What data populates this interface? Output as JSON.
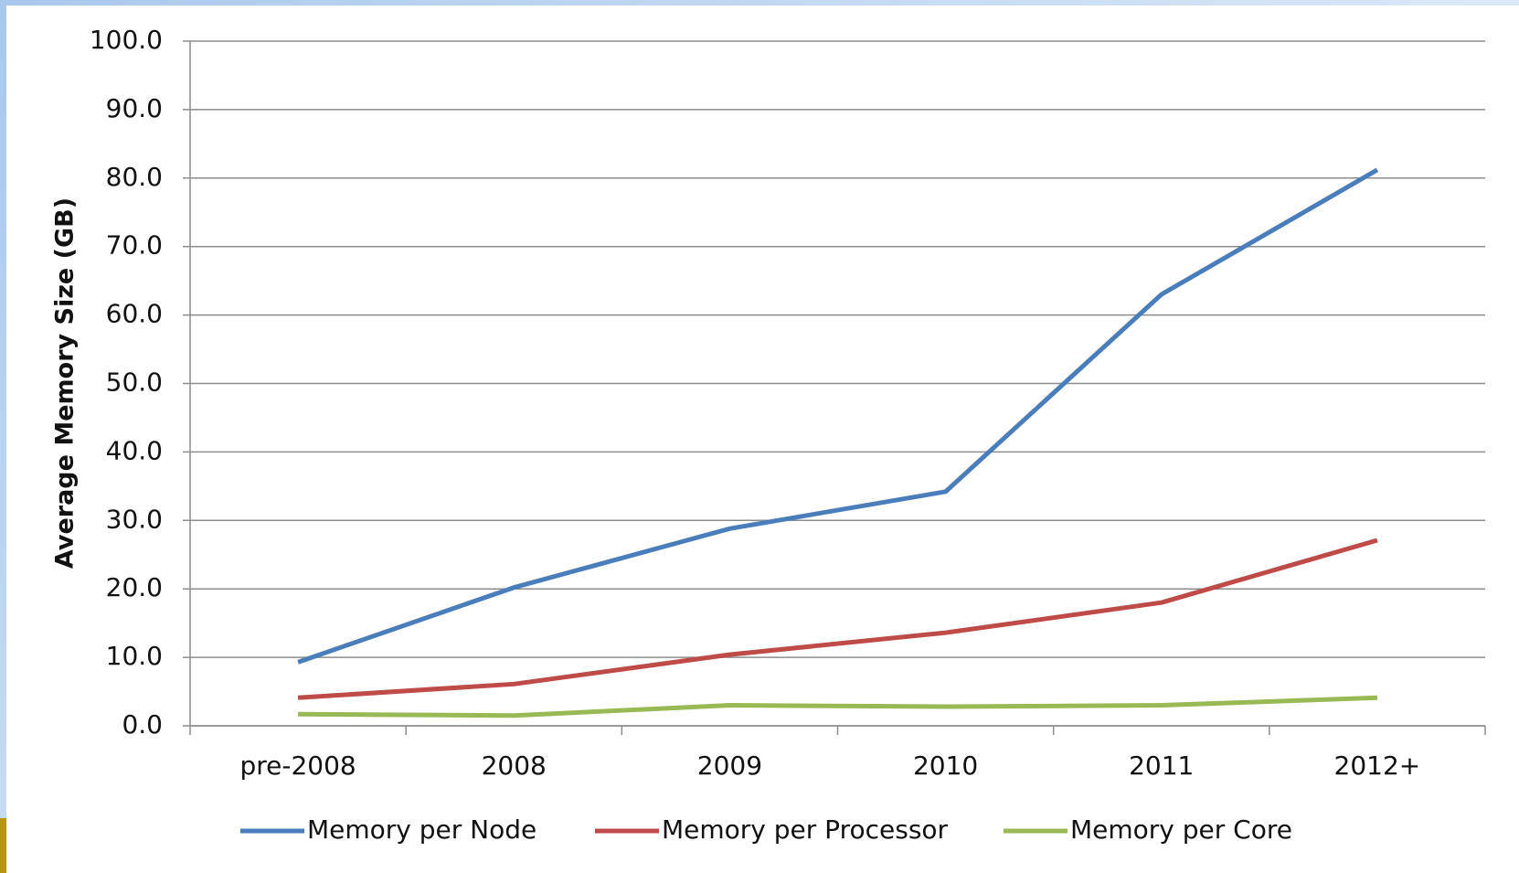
{
  "chart_data": {
    "type": "line",
    "ylabel": "Average Memory Size (GB)",
    "categories": [
      "pre-2008",
      "2008",
      "2009",
      "2010",
      "2011",
      "2012+"
    ],
    "series": [
      {
        "name": "Memory per Node",
        "color": "#4a7ebb",
        "values": [
          9.3,
          20.2,
          28.8,
          34.2,
          63.0,
          81.2
        ]
      },
      {
        "name": "Memory per Processor",
        "color": "#be4b48",
        "values": [
          4.1,
          6.1,
          10.4,
          13.6,
          18.0,
          27.1
        ]
      },
      {
        "name": "Memory per Core",
        "color": "#98b954",
        "values": [
          1.7,
          1.5,
          3.0,
          2.8,
          3.0,
          4.1
        ]
      }
    ],
    "ylim": [
      0,
      100
    ],
    "yticks": [
      {
        "value": 0,
        "label": "0.0"
      },
      {
        "value": 10,
        "label": "10.0"
      },
      {
        "value": 20,
        "label": "20.0"
      },
      {
        "value": 30,
        "label": "30.0"
      },
      {
        "value": 40,
        "label": "40.0"
      },
      {
        "value": 50,
        "label": "50.0"
      },
      {
        "value": 60,
        "label": "60.0"
      },
      {
        "value": 70,
        "label": "70.0"
      },
      {
        "value": 80,
        "label": "80.0"
      },
      {
        "value": 90,
        "label": "90.0"
      },
      {
        "value": 100,
        "label": "100.0"
      }
    ],
    "grid": true,
    "legend": "bottom"
  }
}
